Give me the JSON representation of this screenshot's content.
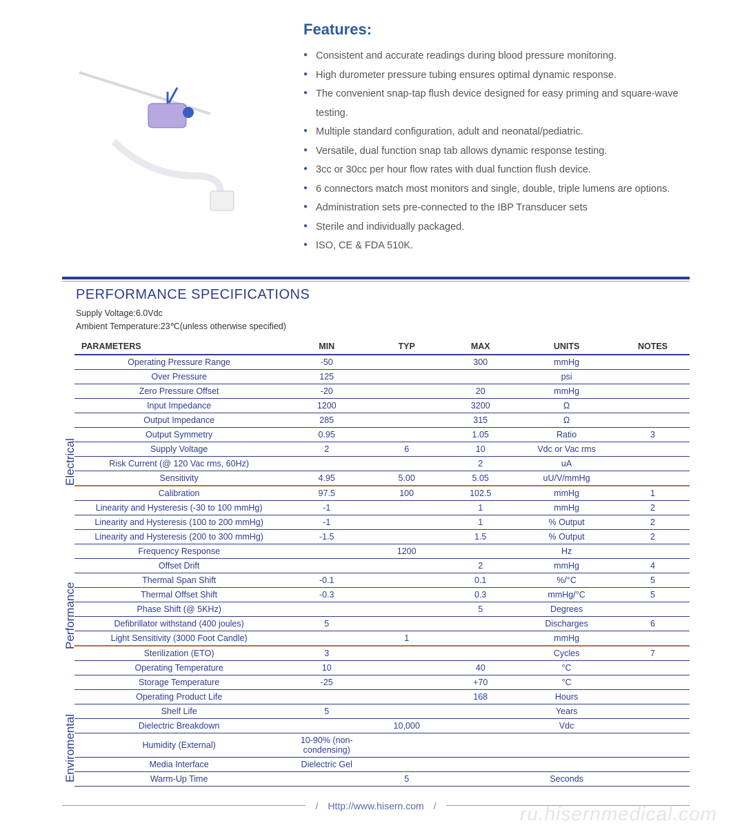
{
  "colors": {
    "heading": "#2e5b9c",
    "table_line": "#2e3c8f",
    "section_sep": "#c56a2e",
    "text": "#555555",
    "cell_text": "#2e3c8f"
  },
  "features": {
    "title": "Features:",
    "items": [
      "Consistent and accurate readings during blood pressure monitoring.",
      "High durometer pressure tubing ensures optimal dynamic response.",
      "The convenient snap-tap flush device designed for easy priming and square-wave testing.",
      "Multiple standard configuration, adult and neonatal/pediatric.",
      "Versatile, dual function snap tab allows dynamic response testing.",
      "3cc or 30cc per hour flow rates with dual function flush device.",
      "6 connectors match most monitors and single, double, triple lumens are options.",
      "Administration sets pre-connected to the IBP Transducer sets",
      "Sterile and individually packaged.",
      "ISO, CE & FDA 510K."
    ]
  },
  "spec": {
    "title": "PERFORMANCE SPECIFICATIONS",
    "notes": [
      "Supply Voltage:6.0Vdc",
      "Ambient Temperature:23℃(unless otherwise specified)"
    ],
    "columns": [
      "PARAMETERS",
      "MIN",
      "TYP",
      "MAX",
      "UNITS",
      "NOTES"
    ],
    "sections": [
      {
        "label": "Electrical",
        "rows": [
          [
            "Operating Pressure Range",
            "-50",
            "",
            "300",
            "mmHg",
            ""
          ],
          [
            "Over  Pressure",
            "125",
            "",
            "",
            "psi",
            ""
          ],
          [
            "Zero Pressure Offset",
            "-20",
            "",
            "20",
            "mmHg",
            ""
          ],
          [
            "Input Impedance",
            "1200",
            "",
            "3200",
            "Ω",
            ""
          ],
          [
            "Output Impedance",
            "285",
            "",
            "315",
            "Ω",
            ""
          ],
          [
            "Output Symmetry",
            "0.95",
            "",
            "1.05",
            "Ratio",
            "3"
          ],
          [
            "Supply Voltage",
            "2",
            "6",
            "10",
            "Vdc or Vac rms",
            ""
          ],
          [
            "Risk Current (@ 120 Vac rms, 60Hz)",
            "",
            "",
            "2",
            "uA",
            ""
          ],
          [
            "Sensitivity",
            "4.95",
            "5.00",
            "5.05",
            "uU/V/mmHg",
            ""
          ]
        ]
      },
      {
        "label": "Performance",
        "rows": [
          [
            "Calibration",
            "97.5",
            "100",
            "102.5",
            "mmHg",
            "1"
          ],
          [
            "Linearity and Hysteresis (-30 to 100 mmHg)",
            "-1",
            "",
            "1",
            "mmHg",
            "2"
          ],
          [
            "Linearity and Hysteresis (100 to 200 mmHg)",
            "-1",
            "",
            "1",
            "% Output",
            "2"
          ],
          [
            "Linearity and Hysteresis (200 to 300 mmHg)",
            "-1.5",
            "",
            "1.5",
            "% Output",
            "2"
          ],
          [
            "Frequency Response",
            "",
            "1200",
            "",
            "Hz",
            ""
          ],
          [
            "Offset Drift",
            "",
            "",
            "2",
            "mmHg",
            "4"
          ],
          [
            "Thermal Span Shift",
            "-0.1",
            "",
            "0.1",
            "%/°C",
            "5"
          ],
          [
            "Thermal Offset Shift",
            "-0.3",
            "",
            "0.3",
            "mmHg/°C",
            "5"
          ],
          [
            "Phase Shift (@ 5KHz)",
            "",
            "",
            "5",
            "Degrees",
            ""
          ],
          [
            "Defibrillator withstand (400 joules)",
            "5",
            "",
            "",
            "Discharges",
            "6"
          ],
          [
            "Light Sensitivity (3000 Foot Candle)",
            "",
            "1",
            "",
            "mmHg",
            ""
          ]
        ]
      },
      {
        "label": "Enviromental",
        "rows": [
          [
            "Sterilization (ETO)",
            "3",
            "",
            "",
            "Cycles",
            "7"
          ],
          [
            "Operating Temperature",
            "10",
            "",
            "40",
            "°C",
            ""
          ],
          [
            "Storage Temperature",
            "-25",
            "",
            "+70",
            "°C",
            ""
          ],
          [
            "Operating Product Life",
            "",
            "",
            "168",
            "Hours",
            ""
          ],
          [
            "Shelf Life",
            "5",
            "",
            "",
            "Years",
            ""
          ],
          [
            "Dielectric Breakdown",
            "",
            "10,000",
            "",
            "Vdc",
            ""
          ],
          [
            "Humidity (External)",
            "10-90% (non-condensing)",
            "",
            "",
            "",
            ""
          ],
          [
            "Media Interface",
            "Dielectric Gel",
            "",
            "",
            "",
            ""
          ],
          [
            "Warm-Up Time",
            "",
            "5",
            "",
            "Seconds",
            ""
          ]
        ]
      }
    ]
  },
  "footer": {
    "url": "Http://www.hisern.com"
  },
  "watermark": "ru.hisernmedical.com"
}
